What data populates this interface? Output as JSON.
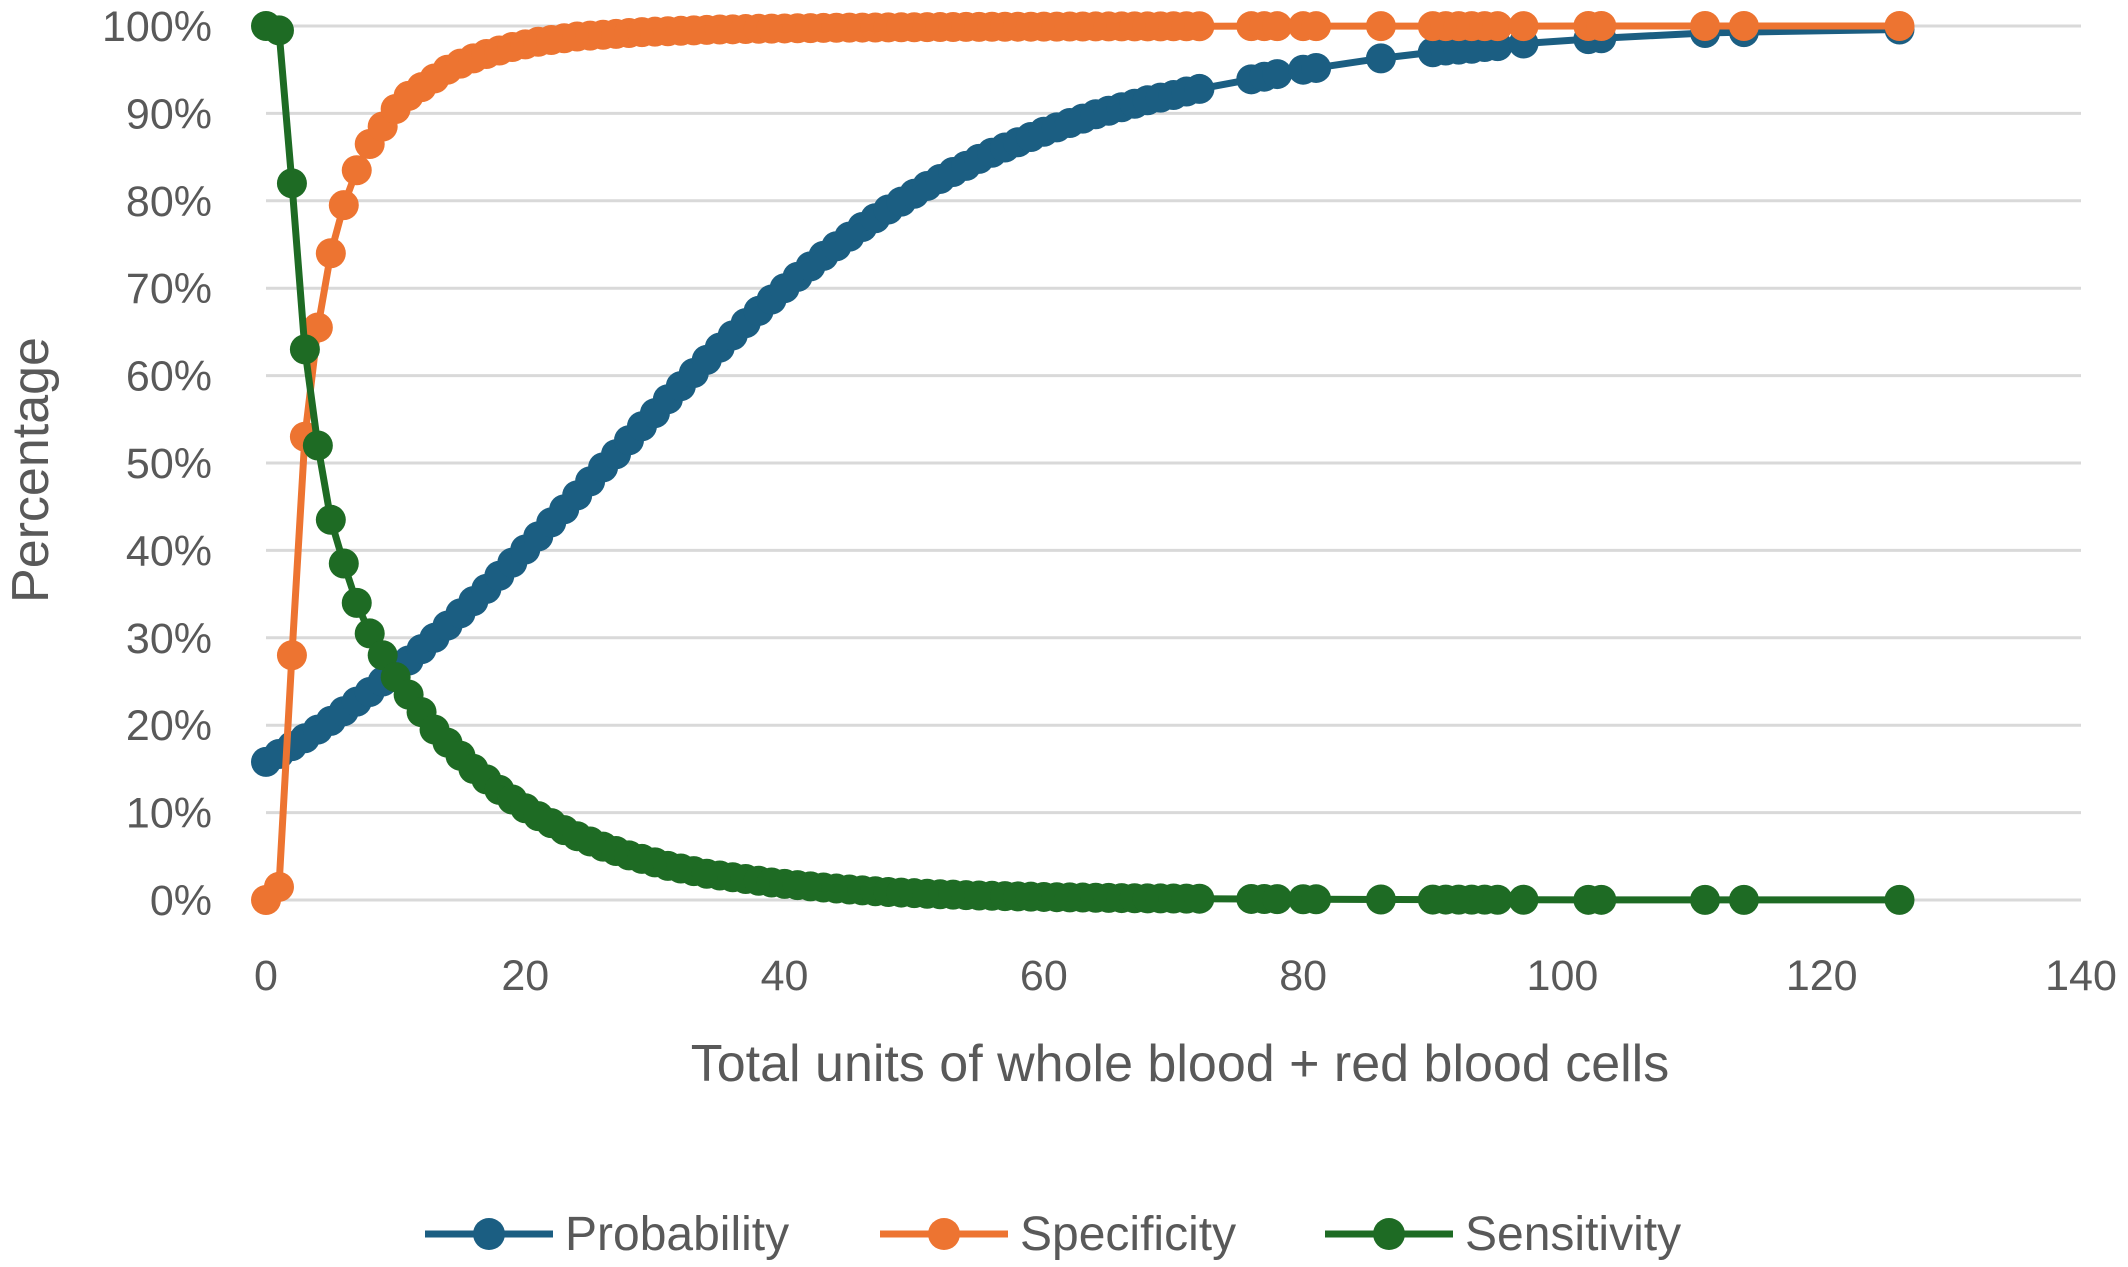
{
  "chart_data": {
    "type": "line",
    "title": "",
    "xlabel": "Total units of whole blood + red blood cells",
    "ylabel": "Percentage",
    "xlim": [
      0,
      140
    ],
    "ylim": [
      0,
      100
    ],
    "x_ticks": [
      0,
      20,
      40,
      60,
      80,
      100,
      120,
      140
    ],
    "y_ticks": [
      0,
      10,
      20,
      30,
      40,
      50,
      60,
      70,
      80,
      90,
      100
    ],
    "x_tick_labels": [
      "0",
      "20",
      "40",
      "60",
      "80",
      "100",
      "120",
      "140"
    ],
    "y_tick_labels": [
      "0%",
      "10%",
      "20%",
      "30%",
      "40%",
      "50%",
      "60%",
      "70%",
      "80%",
      "90%",
      "100%"
    ],
    "grid": true,
    "legend": "bottom",
    "series": [
      {
        "name": "Probability",
        "color": "#1b5e82",
        "x": [
          0,
          1,
          2,
          3,
          4,
          5,
          6,
          7,
          8,
          9,
          10,
          11,
          12,
          13,
          14,
          15,
          16,
          17,
          18,
          19,
          20,
          21,
          22,
          23,
          24,
          25,
          26,
          27,
          28,
          29,
          30,
          31,
          32,
          33,
          34,
          35,
          36,
          37,
          38,
          39,
          40,
          41,
          42,
          43,
          44,
          45,
          46,
          47,
          48,
          49,
          50,
          51,
          52,
          53,
          54,
          55,
          56,
          57,
          58,
          59,
          60,
          61,
          62,
          63,
          64,
          65,
          66,
          67,
          68,
          69,
          70,
          71,
          72,
          76,
          77,
          78,
          80,
          81,
          86,
          90,
          91,
          92,
          93,
          94,
          95,
          97,
          102,
          103,
          111,
          114,
          126
        ],
        "y": [
          15.8,
          16.7,
          17.6,
          18.5,
          19.5,
          20.5,
          21.6,
          22.7,
          23.8,
          25.0,
          26.2,
          27.4,
          28.7,
          30.0,
          31.4,
          32.8,
          34.2,
          35.6,
          37.1,
          38.6,
          40.1,
          41.6,
          43.2,
          44.7,
          46.3,
          47.9,
          49.5,
          51.0,
          52.6,
          54.2,
          55.7,
          57.3,
          58.8,
          60.3,
          61.8,
          63.2,
          64.6,
          66.0,
          67.4,
          68.7,
          70.0,
          71.3,
          72.5,
          73.7,
          74.8,
          75.9,
          77.0,
          78.0,
          79.0,
          79.9,
          80.8,
          81.7,
          82.5,
          83.3,
          84.0,
          84.8,
          85.5,
          86.1,
          86.7,
          87.3,
          87.9,
          88.4,
          88.9,
          89.4,
          89.9,
          90.3,
          90.7,
          91.1,
          91.5,
          91.8,
          92.1,
          92.5,
          92.8,
          93.9,
          94.2,
          94.5,
          95.0,
          95.2,
          96.3,
          97.0,
          97.2,
          97.3,
          97.4,
          97.6,
          97.7,
          98.0,
          98.5,
          98.6,
          99.2,
          99.3,
          99.6
        ]
      },
      {
        "name": "Specificity",
        "color": "#ed7431",
        "x": [
          0,
          1,
          2,
          3,
          4,
          5,
          6,
          7,
          8,
          9,
          10,
          11,
          12,
          13,
          14,
          15,
          16,
          17,
          18,
          19,
          20,
          21,
          22,
          23,
          24,
          25,
          26,
          27,
          28,
          29,
          30,
          31,
          32,
          33,
          34,
          35,
          36,
          37,
          38,
          39,
          40,
          41,
          42,
          43,
          44,
          45,
          46,
          47,
          48,
          49,
          50,
          51,
          52,
          53,
          54,
          55,
          56,
          57,
          58,
          59,
          60,
          61,
          62,
          63,
          64,
          65,
          66,
          67,
          68,
          69,
          70,
          71,
          72,
          76,
          77,
          78,
          80,
          81,
          86,
          90,
          91,
          92,
          93,
          94,
          95,
          97,
          102,
          103,
          111,
          114,
          126
        ],
        "y": [
          0,
          1.5,
          28,
          53,
          65.5,
          74,
          79.5,
          83.5,
          86.5,
          88.5,
          90.5,
          92,
          93,
          94,
          95,
          95.7,
          96.3,
          96.8,
          97.2,
          97.6,
          97.9,
          98.2,
          98.4,
          98.6,
          98.8,
          98.9,
          99.0,
          99.1,
          99.2,
          99.3,
          99.35,
          99.4,
          99.45,
          99.5,
          99.55,
          99.6,
          99.62,
          99.65,
          99.68,
          99.7,
          99.72,
          99.74,
          99.76,
          99.78,
          99.8,
          99.81,
          99.82,
          99.83,
          99.84,
          99.85,
          99.86,
          99.87,
          99.88,
          99.89,
          99.9,
          99.9,
          99.91,
          99.91,
          99.92,
          99.92,
          99.93,
          99.93,
          99.94,
          99.94,
          99.95,
          99.95,
          99.95,
          99.96,
          99.96,
          99.96,
          99.97,
          99.97,
          99.97,
          99.98,
          99.98,
          99.98,
          99.98,
          99.98,
          99.99,
          99.99,
          99.99,
          99.99,
          99.99,
          99.99,
          99.99,
          99.99,
          100,
          100,
          100,
          100,
          100
        ]
      },
      {
        "name": "Sensitivity",
        "color": "#1e6b24",
        "x": [
          0,
          1,
          2,
          3,
          4,
          5,
          6,
          7,
          8,
          9,
          10,
          11,
          12,
          13,
          14,
          15,
          16,
          17,
          18,
          19,
          20,
          21,
          22,
          23,
          24,
          25,
          26,
          27,
          28,
          29,
          30,
          31,
          32,
          33,
          34,
          35,
          36,
          37,
          38,
          39,
          40,
          41,
          42,
          43,
          44,
          45,
          46,
          47,
          48,
          49,
          50,
          51,
          52,
          53,
          54,
          55,
          56,
          57,
          58,
          59,
          60,
          61,
          62,
          63,
          64,
          65,
          66,
          67,
          68,
          69,
          70,
          71,
          72,
          76,
          77,
          78,
          80,
          81,
          86,
          90,
          91,
          92,
          93,
          94,
          95,
          97,
          102,
          103,
          111,
          114,
          126
        ],
        "y": [
          100,
          99.5,
          82,
          63,
          52,
          43.5,
          38.5,
          34,
          30.5,
          28,
          25.5,
          23.5,
          21.5,
          19.5,
          18,
          16.5,
          15,
          13.8,
          12.6,
          11.5,
          10.5,
          9.6,
          8.8,
          8.0,
          7.3,
          6.7,
          6.1,
          5.6,
          5.1,
          4.7,
          4.3,
          3.9,
          3.6,
          3.3,
          3.0,
          2.8,
          2.6,
          2.4,
          2.2,
          2.0,
          1.85,
          1.7,
          1.56,
          1.43,
          1.31,
          1.2,
          1.1,
          1.0,
          0.92,
          0.85,
          0.78,
          0.72,
          0.66,
          0.61,
          0.56,
          0.52,
          0.48,
          0.44,
          0.41,
          0.38,
          0.35,
          0.32,
          0.3,
          0.28,
          0.26,
          0.24,
          0.22,
          0.2,
          0.19,
          0.18,
          0.17,
          0.16,
          0.15,
          0.12,
          0.11,
          0.1,
          0.09,
          0.08,
          0.06,
          0.05,
          0.05,
          0.04,
          0.04,
          0.04,
          0.03,
          0.03,
          0.02,
          0.02,
          0.01,
          0.01,
          0.01
        ]
      }
    ]
  }
}
